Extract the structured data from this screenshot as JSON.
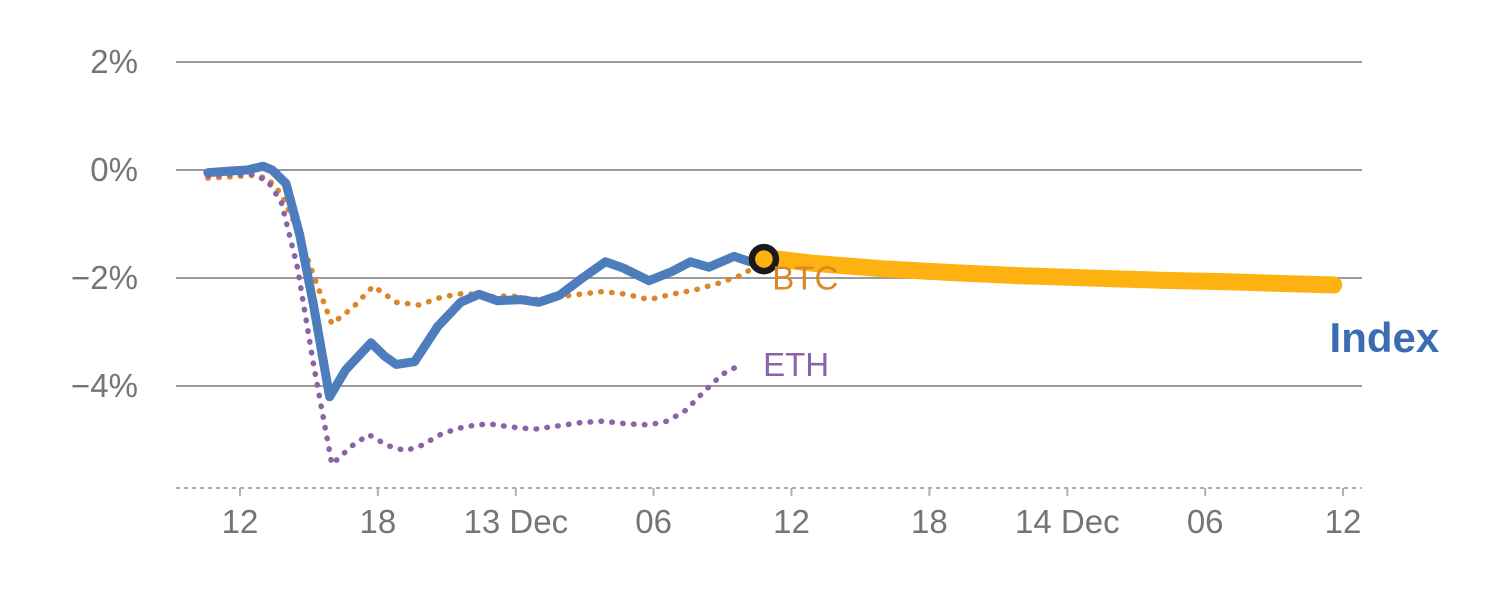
{
  "chart_data": {
    "type": "line",
    "title": "",
    "xlabel": "",
    "ylabel": "",
    "x_unit": "hours since 12 Dec 00:00",
    "ylim": [
      -5.9,
      2.6
    ],
    "grid": true,
    "legend_position": "inline-annotations",
    "colors": {
      "grid": "#9a9a9a",
      "axis_text": "#757575",
      "axis_line": "#b0b0b0",
      "index_blue": "#4d7dbd",
      "btc_orange": "#dd8627",
      "eth_purple": "#8a63a9",
      "projection_amber": "#fdb211",
      "marker_ring": "#1a1a1a"
    },
    "y_ticks": [
      {
        "value": 2,
        "label": "2%"
      },
      {
        "value": 0,
        "label": "0%"
      },
      {
        "value": -2,
        "label": "−2%"
      },
      {
        "value": -4,
        "label": "−4%"
      }
    ],
    "x_ticks": [
      {
        "hour": 12,
        "label": "12"
      },
      {
        "hour": 18,
        "label": "18"
      },
      {
        "hour": 24,
        "label": "13 Dec"
      },
      {
        "hour": 30,
        "label": "06"
      },
      {
        "hour": 36,
        "label": "12"
      },
      {
        "hour": 42,
        "label": "18"
      },
      {
        "hour": 48,
        "label": "14 Dec"
      },
      {
        "hour": 54,
        "label": "06"
      },
      {
        "hour": 60,
        "label": "12"
      }
    ],
    "series": [
      {
        "name": "BTC",
        "color": "#dd8627",
        "style": "dotted",
        "width": 5.5,
        "points": [
          [
            10.6,
            -0.15
          ],
          [
            11.5,
            -0.13
          ],
          [
            12.5,
            -0.1
          ],
          [
            13.2,
            -0.15
          ],
          [
            13.8,
            -0.45
          ],
          [
            14.5,
            -1.1
          ],
          [
            15.2,
            -1.95
          ],
          [
            16.0,
            -2.85
          ],
          [
            16.9,
            -2.55
          ],
          [
            17.8,
            -2.15
          ],
          [
            18.8,
            -2.45
          ],
          [
            19.8,
            -2.5
          ],
          [
            20.8,
            -2.35
          ],
          [
            21.8,
            -2.28
          ],
          [
            22.8,
            -2.35
          ],
          [
            23.8,
            -2.33
          ],
          [
            24.8,
            -2.4
          ],
          [
            25.8,
            -2.35
          ],
          [
            26.8,
            -2.3
          ],
          [
            27.8,
            -2.25
          ],
          [
            28.8,
            -2.3
          ],
          [
            29.8,
            -2.4
          ],
          [
            30.8,
            -2.3
          ],
          [
            31.8,
            -2.22
          ],
          [
            32.8,
            -2.1
          ],
          [
            33.8,
            -1.95
          ],
          [
            34.7,
            -1.72
          ]
        ]
      },
      {
        "name": "ETH",
        "color": "#8a63a9",
        "style": "dotted",
        "width": 5.5,
        "points": [
          [
            10.6,
            -0.1
          ],
          [
            11.5,
            -0.08
          ],
          [
            12.5,
            -0.08
          ],
          [
            13.2,
            -0.2
          ],
          [
            13.8,
            -0.6
          ],
          [
            14.5,
            -1.8
          ],
          [
            15.2,
            -3.6
          ],
          [
            16.0,
            -5.45
          ],
          [
            16.9,
            -5.1
          ],
          [
            17.6,
            -4.9
          ],
          [
            18.4,
            -5.1
          ],
          [
            19.2,
            -5.2
          ],
          [
            19.9,
            -5.1
          ],
          [
            20.8,
            -4.88
          ],
          [
            21.8,
            -4.75
          ],
          [
            22.8,
            -4.7
          ],
          [
            23.8,
            -4.76
          ],
          [
            24.8,
            -4.8
          ],
          [
            25.8,
            -4.74
          ],
          [
            26.8,
            -4.68
          ],
          [
            27.8,
            -4.65
          ],
          [
            28.8,
            -4.7
          ],
          [
            29.8,
            -4.72
          ],
          [
            30.6,
            -4.65
          ],
          [
            31.4,
            -4.45
          ],
          [
            32.2,
            -4.1
          ],
          [
            33.0,
            -3.78
          ],
          [
            33.9,
            -3.58
          ]
        ]
      },
      {
        "name": "Index",
        "color": "#4d7dbd",
        "style": "solid",
        "width": 9,
        "points": [
          [
            10.6,
            -0.05
          ],
          [
            11.5,
            -0.02
          ],
          [
            12.3,
            0.0
          ],
          [
            13.0,
            0.07
          ],
          [
            13.4,
            0.0
          ],
          [
            14.0,
            -0.25
          ],
          [
            14.6,
            -1.2
          ],
          [
            15.2,
            -2.5
          ],
          [
            15.9,
            -4.2
          ],
          [
            16.6,
            -3.7
          ],
          [
            17.7,
            -3.2
          ],
          [
            18.3,
            -3.45
          ],
          [
            18.8,
            -3.6
          ],
          [
            19.6,
            -3.55
          ],
          [
            20.6,
            -2.9
          ],
          [
            21.6,
            -2.45
          ],
          [
            22.4,
            -2.3
          ],
          [
            23.2,
            -2.42
          ],
          [
            24.2,
            -2.4
          ],
          [
            25.0,
            -2.45
          ],
          [
            25.9,
            -2.32
          ],
          [
            26.9,
            -2.0
          ],
          [
            27.9,
            -1.7
          ],
          [
            28.7,
            -1.82
          ],
          [
            29.8,
            -2.05
          ],
          [
            30.8,
            -1.88
          ],
          [
            31.6,
            -1.7
          ],
          [
            32.4,
            -1.8
          ],
          [
            33.5,
            -1.6
          ],
          [
            34.2,
            -1.7
          ],
          [
            34.8,
            -1.65
          ]
        ]
      },
      {
        "name": "Index projection",
        "color": "#fdb211",
        "style": "solid",
        "width": 17,
        "points": [
          [
            34.8,
            -1.62
          ],
          [
            37.0,
            -1.73
          ],
          [
            40.0,
            -1.83
          ],
          [
            43.0,
            -1.9
          ],
          [
            46.0,
            -1.96
          ],
          [
            49.0,
            -2.0
          ],
          [
            52.0,
            -2.04
          ],
          [
            55.0,
            -2.07
          ],
          [
            59.6,
            -2.13
          ]
        ]
      }
    ],
    "marker": {
      "series": "BTC",
      "hour": 34.8,
      "value": -1.65,
      "ring_color": "#1a1a1a",
      "fill_color": "#fdb211"
    },
    "annotations": [
      {
        "text": "BTC",
        "color": "#dd8627",
        "hour": 36.6,
        "value": -2.0,
        "size": 33,
        "bold": false
      },
      {
        "text": "ETH",
        "color": "#8a63a9",
        "hour": 36.2,
        "value": -3.6,
        "size": 33,
        "bold": false
      },
      {
        "text": "Index",
        "color": "#3a6cb4",
        "hour": 61.8,
        "value": -3.1,
        "size": 42,
        "bold": true
      }
    ]
  }
}
